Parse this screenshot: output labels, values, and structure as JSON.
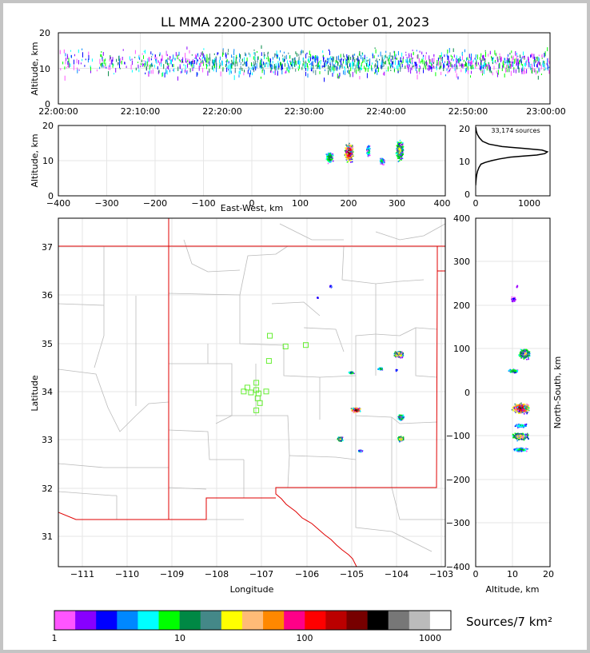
{
  "title": "LL MMA 2200-2300 UTC October 01, 2023",
  "colorbar": {
    "title": "Sources/7 km²",
    "tick_labels": [
      "1",
      "10",
      "100",
      "1000"
    ],
    "colors": [
      "#ff55ff",
      "#8800ff",
      "#0000ff",
      "#0088ff",
      "#00ffff",
      "#00ff00",
      "#008844",
      "#448888",
      "#ffff00",
      "#ffbb77",
      "#ff8800",
      "#ff0088",
      "#ff0000",
      "#bb0000",
      "#770000",
      "#000000",
      "#777777",
      "#bbbbbb",
      "#ffffff"
    ]
  },
  "source_count_label": "33,174 sources",
  "chart_data": [
    {
      "type": "scatter",
      "panel": "altitude-time",
      "ylabel": "Altitude, km",
      "ylim": [
        0,
        20
      ],
      "x_ticks": [
        "22:00:00",
        "22:10:00",
        "22:20:00",
        "22:30:00",
        "22:40:00",
        "22:50:00",
        "23:00:00"
      ],
      "y_ticks": [
        "0",
        "10",
        "20"
      ]
    },
    {
      "type": "scatter",
      "panel": "east-west-altitude",
      "xlabel": "East-West, km",
      "ylabel": "Altitude, km",
      "xlim": [
        -400,
        400
      ],
      "ylim": [
        0,
        20
      ],
      "x_ticks": [
        "−400",
        "−300",
        "−200",
        "−100",
        "0",
        "100",
        "200",
        "300",
        "400"
      ],
      "y_ticks": [
        "0",
        "10",
        "20"
      ]
    },
    {
      "type": "line",
      "panel": "altitude-histogram",
      "xlim": [
        0,
        1400
      ],
      "ylim": [
        0,
        20
      ],
      "x_ticks": [
        "0",
        "1000"
      ],
      "y_ticks": [
        "0",
        "10",
        "20"
      ],
      "x": [
        0,
        5,
        10,
        20,
        35,
        60,
        100,
        180,
        300,
        450,
        650,
        900,
        1150,
        1300,
        1350,
        1250,
        900,
        500,
        250,
        130,
        70,
        30,
        10,
        3
      ],
      "y": [
        3,
        4,
        5,
        6,
        7,
        8,
        9,
        9.5,
        10,
        10.5,
        11,
        11.3,
        11.6,
        12,
        12.5,
        13,
        13.5,
        14,
        14.7,
        15.5,
        16.5,
        17.5,
        18.5,
        19.5
      ]
    },
    {
      "type": "scatter",
      "panel": "plan-view-map",
      "xlabel": "Longitude",
      "ylabel": "Latitude",
      "xlim": [
        -111.5,
        -102.9
      ],
      "ylim": [
        30.4,
        37.6
      ],
      "x_ticks": [
        "−111",
        "−110",
        "−109",
        "−108",
        "−107",
        "−106",
        "−105",
        "−104",
        "−103"
      ],
      "y_ticks": [
        "31",
        "32",
        "33",
        "34",
        "35",
        "36",
        "37"
      ],
      "stations": [
        {
          "lon": -106.8,
          "lat": 35.17
        },
        {
          "lon": -106.45,
          "lat": 34.95
        },
        {
          "lon": -106.0,
          "lat": 34.98
        },
        {
          "lon": -106.82,
          "lat": 34.65
        },
        {
          "lon": -107.1,
          "lat": 34.2
        },
        {
          "lon": -107.3,
          "lat": 34.1
        },
        {
          "lon": -107.38,
          "lat": 34.02
        },
        {
          "lon": -107.22,
          "lat": 34.0
        },
        {
          "lon": -107.1,
          "lat": 34.05
        },
        {
          "lon": -107.05,
          "lat": 33.98
        },
        {
          "lon": -106.88,
          "lat": 34.02
        },
        {
          "lon": -107.07,
          "lat": 33.88
        },
        {
          "lon": -107.02,
          "lat": 33.78
        },
        {
          "lon": -107.1,
          "lat": 33.63
        }
      ]
    },
    {
      "type": "scatter",
      "panel": "altitude-north-south",
      "xlabel": "Altitude, km",
      "ylabel": "North-South, km",
      "xlim": [
        0,
        20
      ],
      "ylim": [
        -400,
        400
      ],
      "x_ticks": [
        "0",
        "10",
        "20"
      ],
      "y_ticks": [
        "−400",
        "−300",
        "−200",
        "−100",
        "0",
        "100",
        "200",
        "300",
        "400"
      ]
    }
  ]
}
